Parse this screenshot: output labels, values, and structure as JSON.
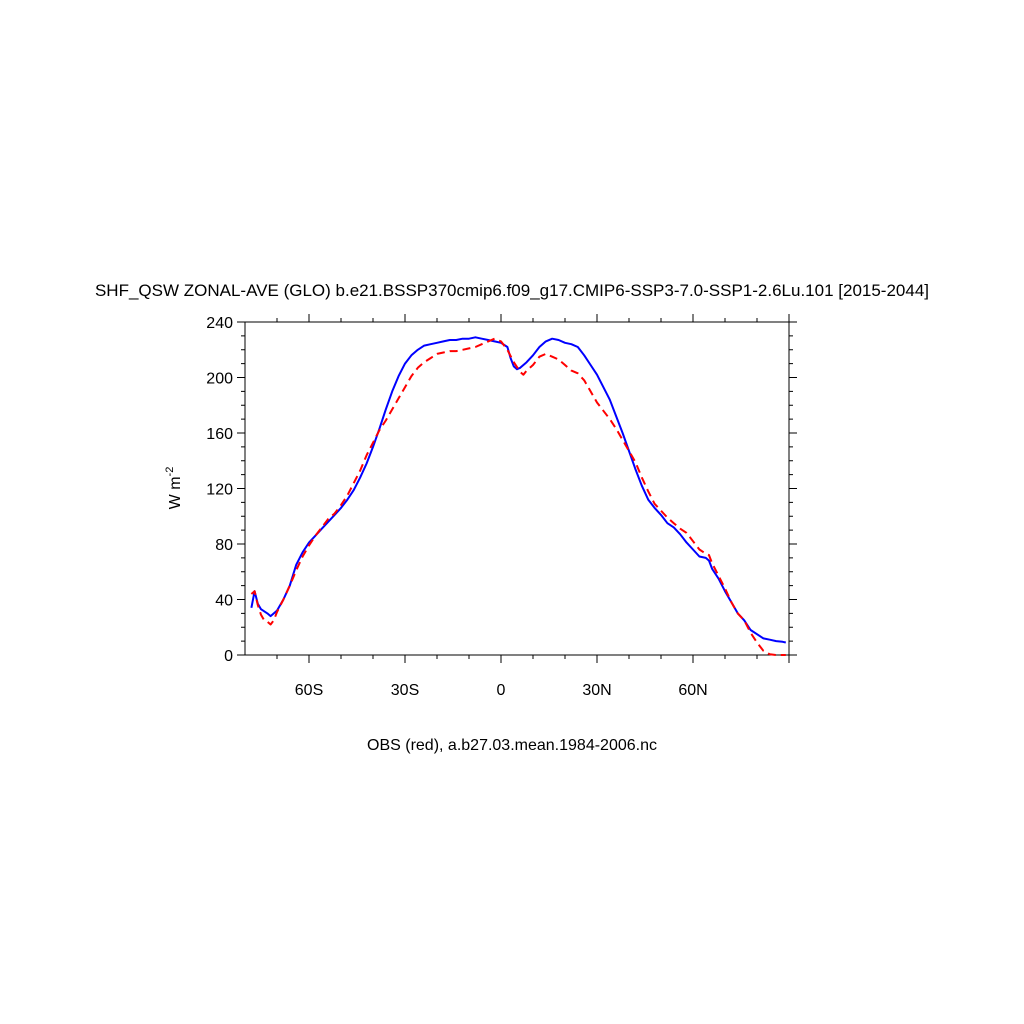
{
  "chart_data": {
    "type": "line",
    "title": "SHF_QSW ZONAL-AVE (GLO) b.e21.BSSP370cmip6.f09_g17.CMIP6-SSP3-7.0-SSP1-2.6Lu.101 [2015-2044]",
    "xlabel": "OBS (red), a.b27.03.mean.1984-2006.nc",
    "ylabel_main": "W m",
    "ylabel_sup": "-2",
    "xlim": [
      -80,
      90
    ],
    "ylim": [
      0,
      240
    ],
    "xticks": [
      {
        "value": -60,
        "label": "60S"
      },
      {
        "value": -30,
        "label": "30S"
      },
      {
        "value": 0,
        "label": "0"
      },
      {
        "value": 30,
        "label": "30N"
      },
      {
        "value": 60,
        "label": "60N"
      }
    ],
    "yticks": [
      {
        "value": 0,
        "label": "0"
      },
      {
        "value": 40,
        "label": "40"
      },
      {
        "value": 80,
        "label": "80"
      },
      {
        "value": 120,
        "label": "120"
      },
      {
        "value": 160,
        "label": "160"
      },
      {
        "value": 200,
        "label": "200"
      },
      {
        "value": 240,
        "label": "240"
      }
    ],
    "series": [
      {
        "name": "",
        "color": "#0000ff",
        "dash": "solid",
        "points": [
          [
            -78,
            34
          ],
          [
            -77,
            46
          ],
          [
            -76,
            37
          ],
          [
            -75,
            33
          ],
          [
            -73,
            30
          ],
          [
            -72,
            28
          ],
          [
            -70,
            32
          ],
          [
            -68,
            40
          ],
          [
            -66,
            50
          ],
          [
            -64,
            65
          ],
          [
            -62,
            74
          ],
          [
            -60,
            81
          ],
          [
            -58,
            86
          ],
          [
            -56,
            91
          ],
          [
            -54,
            96
          ],
          [
            -52,
            101
          ],
          [
            -50,
            106
          ],
          [
            -48,
            112
          ],
          [
            -46,
            119
          ],
          [
            -44,
            128
          ],
          [
            -42,
            138
          ],
          [
            -40,
            150
          ],
          [
            -38,
            163
          ],
          [
            -36,
            177
          ],
          [
            -34,
            190
          ],
          [
            -32,
            201
          ],
          [
            -30,
            210
          ],
          [
            -28,
            216
          ],
          [
            -26,
            220
          ],
          [
            -24,
            223
          ],
          [
            -22,
            224
          ],
          [
            -20,
            225
          ],
          [
            -18,
            226
          ],
          [
            -16,
            227
          ],
          [
            -14,
            227
          ],
          [
            -12,
            228
          ],
          [
            -10,
            228
          ],
          [
            -8,
            229
          ],
          [
            -6,
            228
          ],
          [
            -4,
            227
          ],
          [
            -2,
            226
          ],
          [
            0,
            225
          ],
          [
            2,
            222
          ],
          [
            3,
            214
          ],
          [
            4,
            208
          ],
          [
            5,
            206
          ],
          [
            6,
            207
          ],
          [
            8,
            211
          ],
          [
            10,
            216
          ],
          [
            12,
            222
          ],
          [
            14,
            226
          ],
          [
            16,
            228
          ],
          [
            18,
            227
          ],
          [
            20,
            225
          ],
          [
            22,
            224
          ],
          [
            24,
            222
          ],
          [
            26,
            216
          ],
          [
            28,
            209
          ],
          [
            30,
            202
          ],
          [
            32,
            193
          ],
          [
            34,
            184
          ],
          [
            36,
            172
          ],
          [
            38,
            160
          ],
          [
            40,
            147
          ],
          [
            42,
            134
          ],
          [
            44,
            122
          ],
          [
            46,
            112
          ],
          [
            48,
            106
          ],
          [
            50,
            101
          ],
          [
            52,
            95
          ],
          [
            54,
            92
          ],
          [
            56,
            87
          ],
          [
            58,
            81
          ],
          [
            60,
            76
          ],
          [
            62,
            71
          ],
          [
            64,
            70
          ],
          [
            65,
            68
          ],
          [
            66,
            62
          ],
          [
            68,
            55
          ],
          [
            70,
            46
          ],
          [
            72,
            38
          ],
          [
            74,
            30
          ],
          [
            76,
            25
          ],
          [
            78,
            18
          ],
          [
            80,
            15
          ],
          [
            82,
            12
          ],
          [
            84,
            11
          ],
          [
            86,
            10
          ],
          [
            88,
            9.5
          ],
          [
            89,
            9
          ]
        ]
      },
      {
        "name": "OBS",
        "color": "#ff0000",
        "dash": "dashed",
        "points": [
          [
            -78,
            44
          ],
          [
            -77,
            46
          ],
          [
            -76,
            36
          ],
          [
            -75,
            29
          ],
          [
            -74,
            25
          ],
          [
            -73,
            24
          ],
          [
            -72,
            22
          ],
          [
            -71,
            25
          ],
          [
            -70,
            31
          ],
          [
            -68,
            40
          ],
          [
            -66,
            50
          ],
          [
            -64,
            61
          ],
          [
            -62,
            71
          ],
          [
            -60,
            79
          ],
          [
            -58,
            86
          ],
          [
            -56,
            92
          ],
          [
            -54,
            98
          ],
          [
            -52,
            102
          ],
          [
            -50,
            108
          ],
          [
            -48,
            115
          ],
          [
            -46,
            124
          ],
          [
            -44,
            133
          ],
          [
            -42,
            144
          ],
          [
            -40,
            153
          ],
          [
            -38,
            162
          ],
          [
            -36,
            169
          ],
          [
            -34,
            177
          ],
          [
            -32,
            185
          ],
          [
            -30,
            193
          ],
          [
            -28,
            201
          ],
          [
            -26,
            207
          ],
          [
            -24,
            211
          ],
          [
            -22,
            214
          ],
          [
            -20,
            217
          ],
          [
            -18,
            218
          ],
          [
            -16,
            219
          ],
          [
            -14,
            219
          ],
          [
            -12,
            220
          ],
          [
            -10,
            221
          ],
          [
            -8,
            222
          ],
          [
            -6,
            224
          ],
          [
            -4,
            226
          ],
          [
            -2,
            228
          ],
          [
            0,
            226
          ],
          [
            2,
            220
          ],
          [
            4,
            211
          ],
          [
            6,
            204
          ],
          [
            7,
            202
          ],
          [
            8,
            205
          ],
          [
            10,
            209
          ],
          [
            12,
            215
          ],
          [
            14,
            217
          ],
          [
            16,
            215
          ],
          [
            18,
            213
          ],
          [
            20,
            209
          ],
          [
            22,
            205
          ],
          [
            24,
            203
          ],
          [
            26,
            198
          ],
          [
            28,
            190
          ],
          [
            30,
            182
          ],
          [
            32,
            176
          ],
          [
            34,
            170
          ],
          [
            36,
            163
          ],
          [
            38,
            155
          ],
          [
            40,
            147
          ],
          [
            42,
            139
          ],
          [
            44,
            128
          ],
          [
            46,
            118
          ],
          [
            48,
            109
          ],
          [
            50,
            104
          ],
          [
            52,
            99
          ],
          [
            54,
            95
          ],
          [
            56,
            91
          ],
          [
            58,
            88
          ],
          [
            60,
            82
          ],
          [
            62,
            76
          ],
          [
            64,
            73
          ],
          [
            65,
            72
          ],
          [
            66,
            66
          ],
          [
            68,
            57
          ],
          [
            70,
            48
          ],
          [
            72,
            38
          ],
          [
            74,
            30
          ],
          [
            76,
            25
          ],
          [
            78,
            16
          ],
          [
            80,
            9
          ],
          [
            82,
            3
          ],
          [
            84,
            0.5
          ],
          [
            86,
            0
          ],
          [
            88,
            0
          ],
          [
            89,
            0
          ]
        ]
      }
    ]
  }
}
